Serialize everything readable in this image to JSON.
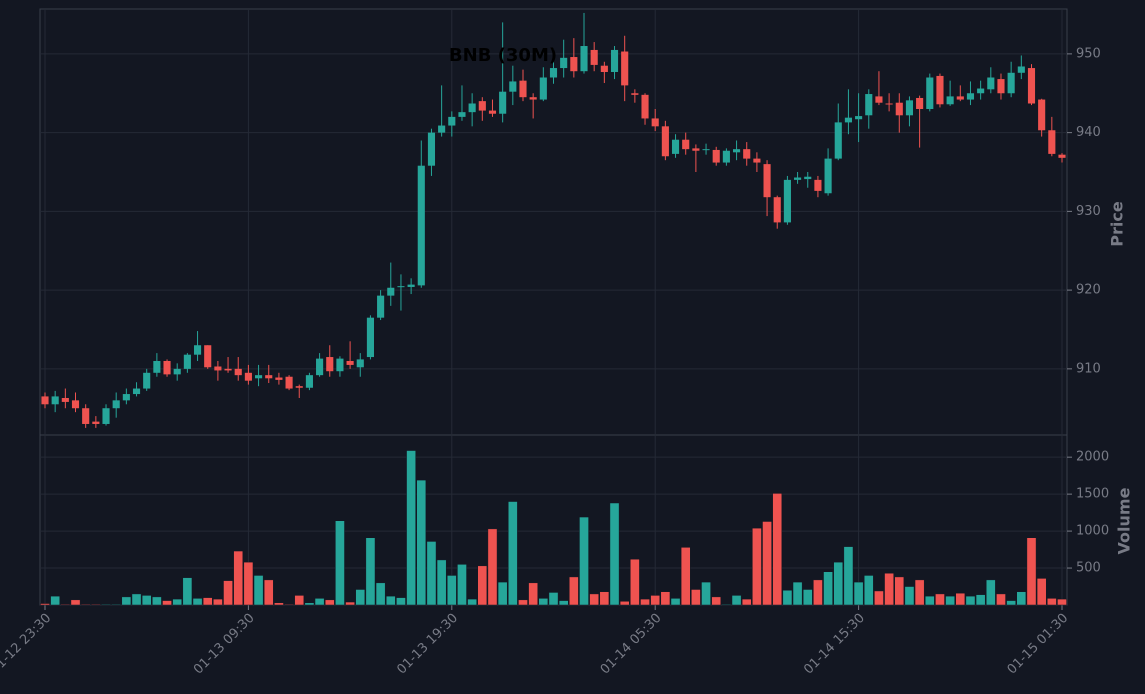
{
  "chart_data": [
    {
      "type": "candlestick",
      "title": "BNB (30M)",
      "ylabel": "Price",
      "up_color": "#26a69a",
      "down_color": "#ef5350",
      "grid": true,
      "ylim": [
        901.6,
        955.7
      ],
      "yticks": [
        910,
        920,
        930,
        940,
        950
      ],
      "open": [
        906.5,
        905.5,
        906.3,
        906,
        905,
        903.3,
        903,
        905,
        906,
        906.8,
        907.5,
        909.5,
        911,
        909.3,
        910,
        911.8,
        913,
        910.3,
        910,
        910,
        909.5,
        908.8,
        909.2,
        908.9,
        909,
        907.8,
        907.6,
        909.2,
        911.5,
        909.7,
        911,
        910.2,
        911.5,
        916.5,
        919.3,
        920.4,
        920.4,
        920.6,
        935.8,
        940,
        940.9,
        942,
        942.6,
        944,
        942.8,
        942.4,
        945.2,
        946.6,
        944.5,
        944.2,
        947,
        948.2,
        949.6,
        947.8,
        950.5,
        948.5,
        947.7,
        950.3,
        945,
        944.8,
        941.8,
        940.8,
        937.3,
        939.1,
        938,
        937.8,
        937.8,
        936.2,
        937.5,
        937.9,
        936.7,
        936,
        931.8,
        928.6,
        934,
        934.1,
        934,
        932.3,
        936.7,
        941.3,
        941.7,
        942.2,
        944.6,
        943.7,
        943.8,
        942.2,
        944.4,
        943,
        947.2,
        943.6,
        944.6,
        944.2,
        945,
        945.5,
        946.8,
        945,
        947.6,
        948.2,
        944.2,
        940.3,
        937.2
      ],
      "high": [
        907,
        907.2,
        907.5,
        907,
        905.5,
        904,
        905.5,
        907,
        907.5,
        908.3,
        910,
        912,
        911.2,
        910.7,
        912,
        914.8,
        913,
        911,
        911.5,
        911.5,
        910.5,
        910.5,
        910.5,
        909.5,
        909.2,
        908,
        909.5,
        912,
        913,
        911.6,
        913.5,
        912,
        916.8,
        920,
        923.5,
        922,
        921.5,
        939,
        940.5,
        946,
        942.7,
        946,
        945,
        944.5,
        944.2,
        954,
        948.5,
        948,
        945,
        948.3,
        950.6,
        951.8,
        952,
        955.2,
        951.5,
        949,
        951,
        952.3,
        945.5,
        945,
        943,
        941.5,
        939.8,
        940,
        938.5,
        938.6,
        938.2,
        938,
        939,
        938.8,
        937.5,
        936.5,
        932,
        934.5,
        935,
        935,
        934.5,
        938,
        943.7,
        945.5,
        945,
        945.5,
        947.8,
        945,
        945,
        944.6,
        944.7,
        947.5,
        947.5,
        946.6,
        946,
        946.5,
        946.6,
        948.3,
        947.5,
        949,
        949.8,
        948.7,
        944.3,
        942,
        937.4
      ],
      "low": [
        905,
        904.5,
        905,
        904.5,
        902.5,
        902.5,
        902.8,
        903.8,
        905.5,
        906.5,
        907.2,
        909,
        909,
        908.5,
        909.5,
        911,
        910,
        908.5,
        909.5,
        908.5,
        908,
        907.8,
        908.2,
        908,
        907.3,
        906.3,
        907.3,
        909,
        909,
        909,
        910,
        909,
        911.2,
        916.2,
        918,
        917.4,
        919.5,
        920.3,
        934.5,
        939.5,
        939.5,
        941.5,
        940.8,
        941.5,
        942,
        941.3,
        943.5,
        944,
        941.8,
        944,
        946.2,
        947,
        947,
        947.5,
        947.8,
        946.3,
        946.8,
        944,
        943.8,
        941,
        940.2,
        936.5,
        936.8,
        937.2,
        935,
        937.2,
        935.8,
        935.8,
        936.5,
        935.8,
        935,
        929.4,
        927.8,
        928.3,
        933.5,
        933,
        931.8,
        932,
        936.5,
        939.8,
        938.8,
        940.5,
        943.5,
        942.7,
        940,
        940.8,
        938.1,
        942.7,
        943.2,
        943.4,
        944,
        943.5,
        944.2,
        945,
        944.2,
        944.5,
        946.8,
        943.5,
        939.5,
        937,
        936.2
      ],
      "close": [
        905.5,
        906.5,
        905.8,
        905,
        903,
        903,
        905,
        906,
        906.8,
        907.5,
        909.5,
        911,
        909.3,
        910,
        911.8,
        913,
        910.2,
        909.8,
        909.8,
        909.2,
        908.5,
        909.2,
        908.8,
        908.6,
        907.5,
        907.6,
        909.2,
        911.3,
        909.7,
        911.3,
        910.5,
        911.2,
        916.5,
        919.3,
        920.3,
        920.5,
        920.7,
        935.8,
        940,
        940.9,
        942,
        942.6,
        943.7,
        942.8,
        942.4,
        945.2,
        946.5,
        944.5,
        944.2,
        947,
        948.2,
        949.5,
        947.8,
        951,
        948.6,
        947.7,
        950.5,
        946,
        944.8,
        941.8,
        940.8,
        937,
        939.1,
        937.9,
        937.7,
        937.9,
        936.2,
        937.7,
        937.9,
        936.7,
        936.2,
        931.8,
        928.6,
        934,
        934.3,
        934.4,
        932.6,
        936.7,
        941.3,
        941.9,
        942.1,
        944.9,
        943.8,
        943.6,
        942.2,
        944.1,
        943,
        947,
        943.6,
        944.6,
        944.2,
        945,
        945.6,
        947,
        945,
        947.6,
        948.4,
        943.7,
        940.3,
        937.3,
        936.8
      ]
    },
    {
      "type": "bar",
      "ylabel": "Volume",
      "grid": true,
      "ylim": [
        0,
        2300
      ],
      "yticks": [
        500,
        1000,
        1500,
        2000
      ],
      "categories": [
        "01-12 23:30",
        null,
        null,
        null,
        null,
        null,
        null,
        null,
        null,
        null,
        null,
        null,
        null,
        null,
        null,
        null,
        null,
        null,
        null,
        null,
        "01-13 09:30",
        null,
        null,
        null,
        null,
        null,
        null,
        null,
        null,
        null,
        null,
        null,
        null,
        null,
        null,
        null,
        null,
        null,
        null,
        null,
        "01-13 19:30",
        null,
        null,
        null,
        null,
        null,
        null,
        null,
        null,
        null,
        null,
        null,
        null,
        null,
        null,
        null,
        null,
        null,
        null,
        null,
        "01-14 05:30",
        null,
        null,
        null,
        null,
        null,
        null,
        null,
        null,
        null,
        null,
        null,
        null,
        null,
        null,
        null,
        null,
        null,
        null,
        null,
        "01-14 15:30",
        null,
        null,
        null,
        null,
        null,
        null,
        null,
        null,
        null,
        null,
        null,
        null,
        null,
        null,
        null,
        null,
        null,
        null,
        null,
        "01-15 01:30"
      ],
      "values": [
        20,
        120,
        10,
        70,
        10,
        10,
        10,
        10,
        110,
        150,
        130,
        110,
        60,
        80,
        370,
        90,
        100,
        80,
        330,
        730,
        580,
        400,
        340,
        30,
        10,
        130,
        30,
        90,
        70,
        1140,
        40,
        210,
        910,
        300,
        120,
        100,
        2090,
        1690,
        860,
        610,
        400,
        550,
        80,
        530,
        1030,
        310,
        1400,
        70,
        300,
        90,
        170,
        60,
        380,
        1190,
        150,
        180,
        1380,
        50,
        620,
        80,
        130,
        180,
        90,
        780,
        210,
        310,
        110,
        10,
        130,
        80,
        1040,
        1130,
        1510,
        200,
        310,
        210,
        340,
        450,
        580,
        790,
        310,
        400,
        190,
        430,
        380,
        250,
        340,
        120,
        150,
        120,
        160,
        120,
        140,
        340,
        150,
        60,
        180,
        910,
        360,
        90,
        80
      ]
    }
  ]
}
